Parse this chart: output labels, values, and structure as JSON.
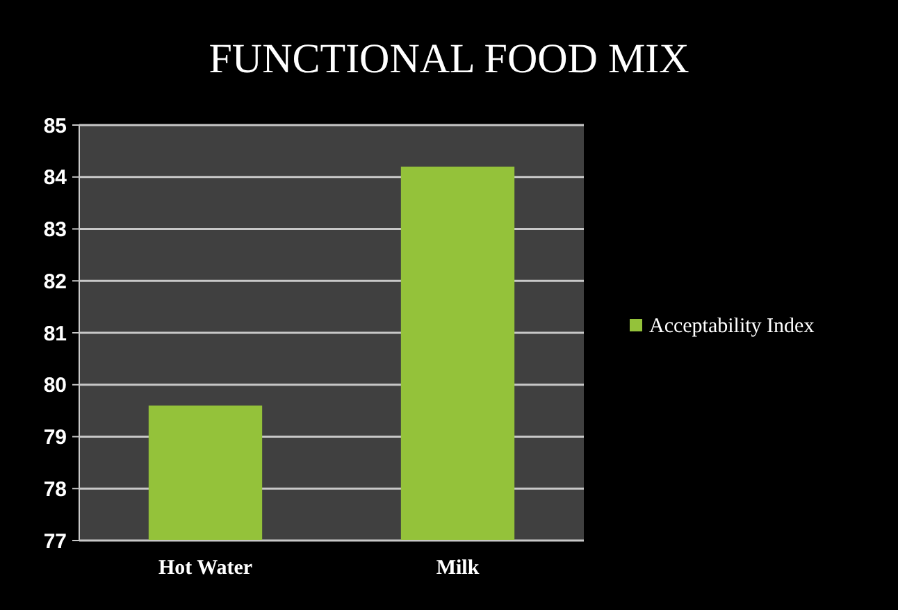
{
  "chart_data": {
    "type": "bar",
    "title": "FUNCTIONAL FOOD MIX",
    "categories": [
      "Hot Water",
      "Milk"
    ],
    "series": [
      {
        "name": "Acceptability Index",
        "color": "#94c23a",
        "values": [
          79.6,
          84.2
        ]
      }
    ],
    "ylim": [
      77,
      85
    ],
    "yticks": [
      77,
      78,
      79,
      80,
      81,
      82,
      83,
      84,
      85
    ],
    "grid": "y",
    "legend": "right"
  }
}
